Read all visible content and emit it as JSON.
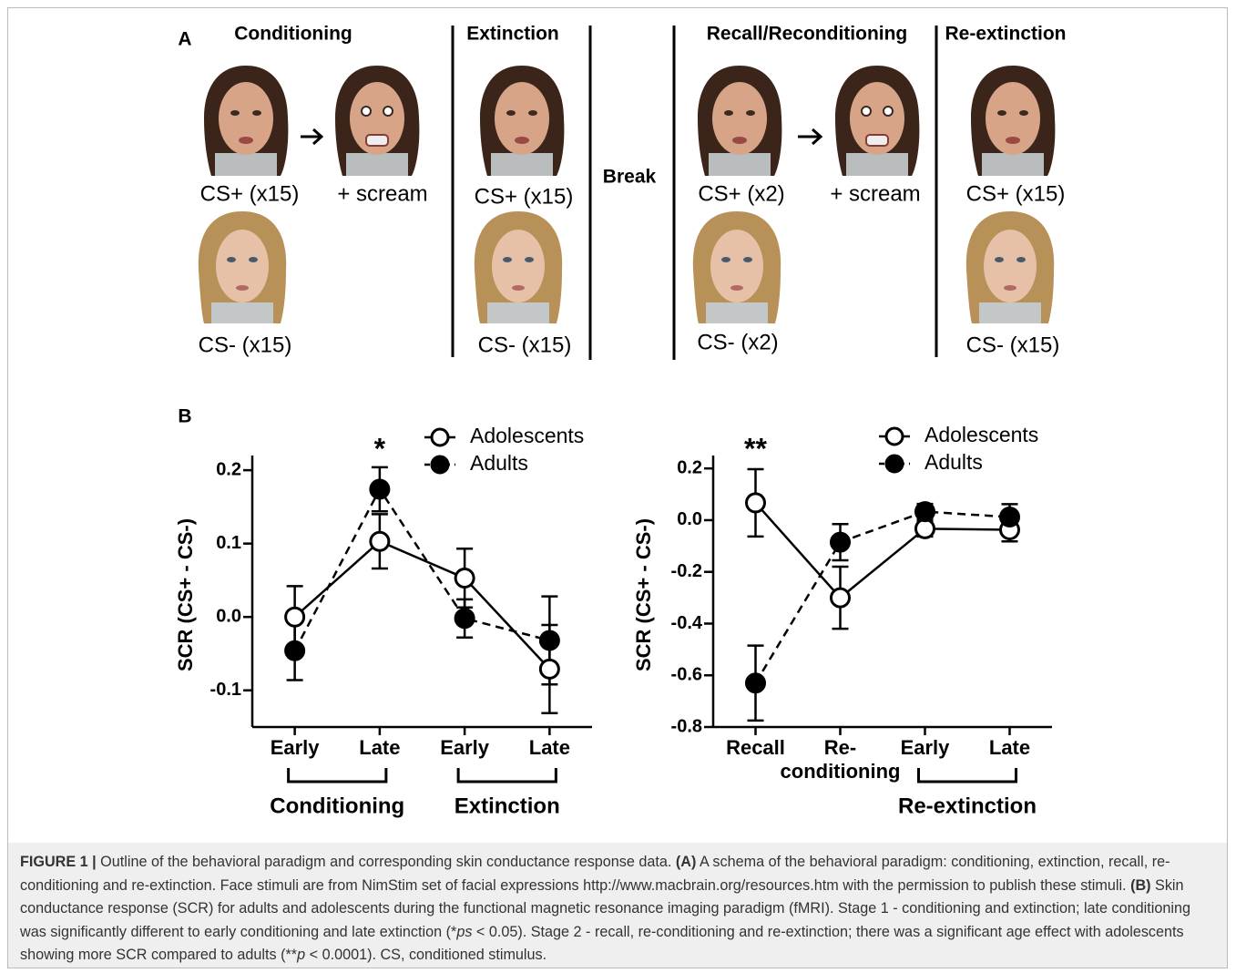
{
  "panel_a": {
    "label": "A",
    "stages": [
      "Conditioning",
      "Extinction",
      "Recall/Reconditioning",
      "Re-extinction"
    ],
    "break": "Break",
    "stimuli": [
      "CS+ (x15)",
      "+ scream",
      "CS- (x15)",
      "CS+ (x15)",
      "CS- (x15)",
      "CS+ (x2)",
      "+ scream",
      "CS- (x2)",
      "CS+ (x15)",
      "CS- (x15)"
    ]
  },
  "panel_b": {
    "label": "B"
  },
  "chart_data": [
    {
      "type": "line",
      "y_label": "SCR (CS+ - CS-)",
      "categories": [
        "Early",
        "Late",
        "Early",
        "Late"
      ],
      "group_labels": [
        "Conditioning",
        "Extinction"
      ],
      "annotations": [
        "*"
      ],
      "ylim": [
        -0.15,
        0.22
      ],
      "yticks": [
        0.2,
        0.1,
        {
          "value": 0,
          "label": "0.0"
        },
        -0.1
      ],
      "grid": false,
      "series": [
        {
          "name": "Adolescents",
          "color": "#000000",
          "marker": "open",
          "dashed": false,
          "values": [
            0.0,
            0.103,
            0.053,
            -0.071
          ],
          "errors": [
            0.042,
            0.037,
            0.04,
            0.06
          ]
        },
        {
          "name": "Adults",
          "color": "#000000",
          "marker": "filled",
          "dashed": true,
          "values": [
            -0.046,
            0.174,
            -0.002,
            -0.032
          ],
          "errors": [
            0.04,
            0.03,
            0.026,
            0.06
          ]
        }
      ]
    },
    {
      "type": "line",
      "y_label": "SCR (CS+ - CS-)",
      "categories": [
        "Recall",
        "Re-\nconditioning",
        "Early",
        "Late"
      ],
      "group_labels": [
        "Re-extinction"
      ],
      "annotations": [
        "**"
      ],
      "ylim": [
        -0.8,
        0.25
      ],
      "yticks": [
        0.2,
        {
          "value": 0,
          "label": "0.0"
        },
        -0.2,
        -0.4,
        -0.6,
        -0.8
      ],
      "grid": false,
      "series": [
        {
          "name": "Adolescents",
          "color": "#000000",
          "marker": "open",
          "dashed": false,
          "values": [
            0.067,
            -0.3,
            -0.033,
            -0.037
          ],
          "errors": [
            0.13,
            0.12,
            0.03,
            0.045
          ]
        },
        {
          "name": "Adults",
          "color": "#000000",
          "marker": "filled",
          "dashed": true,
          "values": [
            -0.63,
            -0.085,
            0.033,
            0.012
          ],
          "errors": [
            0.145,
            0.07,
            0.03,
            0.05
          ]
        }
      ]
    }
  ],
  "caption": {
    "segments": [
      {
        "text": "FIGURE 1 |",
        "style": "bold"
      },
      {
        "text": " Outline of the behavioral paradigm and corresponding skin conductance response data. ",
        "style": "normal"
      },
      {
        "text": "(A)",
        "style": "bold"
      },
      {
        "text": " A schema of the behavioral paradigm: conditioning, extinction, recall, re-conditioning and re-extinction. Face stimuli are from NimStim set of facial expressions http://www.macbrain.org/resources.htm with the permission to publish these stimuli. ",
        "style": "normal"
      },
      {
        "text": "(B)",
        "style": "bold"
      },
      {
        "text": " Skin conductance response (SCR) for adults and adolescents during the functional magnetic resonance imaging paradigm (fMRI). Stage 1 - conditioning and extinction; late conditioning was significantly different to early conditioning and late extinction (*",
        "style": "normal"
      },
      {
        "text": "ps",
        "style": "italic"
      },
      {
        "text": " < 0.05). Stage 2 - recall, re-conditioning and re-extinction; there was a significant age effect with adolescents showing more SCR compared to adults (**",
        "style": "normal"
      },
      {
        "text": "p",
        "style": "italic"
      },
      {
        "text": " < 0.0001). CS, conditioned stimulus.",
        "style": "normal"
      }
    ]
  }
}
